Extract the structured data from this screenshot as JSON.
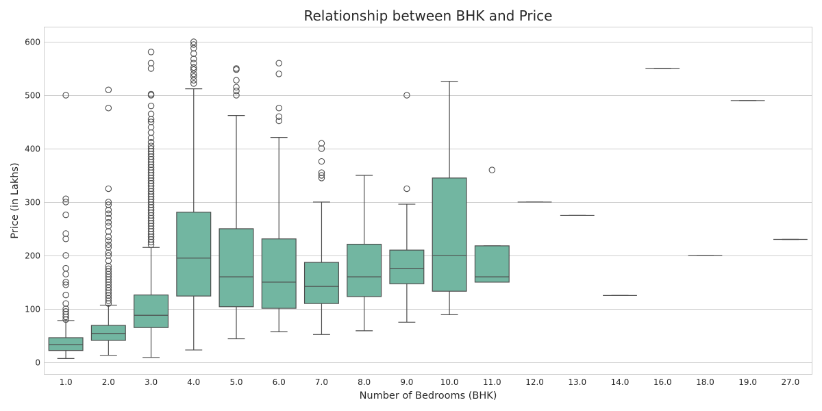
{
  "chart_data": {
    "type": "box",
    "title": "Relationship between BHK and Price",
    "xlabel": "Number of Bedrooms (BHK)",
    "ylabel": "Price (in Lakhs)",
    "ylim": [
      -22,
      627
    ],
    "yticks": [
      0,
      100,
      200,
      300,
      400,
      500,
      600
    ],
    "grid": "horizontal",
    "colors": {
      "box": "#72b6a1",
      "line": "#4d4d4d",
      "grid": "#cccccc",
      "frame": "#cccccc"
    },
    "categories": [
      "1.0",
      "2.0",
      "3.0",
      "4.0",
      "5.0",
      "6.0",
      "7.0",
      "8.0",
      "9.0",
      "10.0",
      "11.0",
      "12.0",
      "13.0",
      "14.0",
      "16.0",
      "18.0",
      "19.0",
      "27.0"
    ],
    "boxes": [
      {
        "category": "1.0",
        "whislo": 7,
        "q1": 22,
        "med": 33,
        "q3": 46,
        "whishi": 78,
        "fliers": [
          500,
          306,
          300,
          276,
          241,
          231,
          200,
          176,
          165,
          150,
          145,
          126,
          110,
          100,
          95,
          90,
          85,
          80
        ]
      },
      {
        "category": "2.0",
        "whislo": 13,
        "q1": 41,
        "med": 54,
        "q3": 69,
        "whishi": 107,
        "fliers": [
          510,
          476,
          325,
          300,
          295,
          285,
          278,
          270,
          262,
          255,
          245,
          235,
          228,
          220,
          215,
          205,
          200,
          190,
          180,
          175,
          170,
          165,
          160,
          155,
          150,
          145,
          140,
          135,
          130,
          125,
          120,
          115,
          110
        ]
      },
      {
        "category": "3.0",
        "whislo": 9,
        "q1": 65,
        "med": 88,
        "q3": 126,
        "whishi": 215,
        "fliers": [
          581,
          560,
          550,
          502,
          500,
          480,
          465,
          455,
          450,
          440,
          430,
          420,
          412,
          405,
          400,
          395,
          390,
          385,
          380,
          375,
          370,
          365,
          360,
          355,
          350,
          345,
          340,
          335,
          330,
          325,
          320,
          315,
          310,
          305,
          300,
          295,
          290,
          285,
          280,
          275,
          270,
          265,
          260,
          255,
          250,
          245,
          240,
          235,
          230,
          225,
          220
        ]
      },
      {
        "category": "4.0",
        "whislo": 23,
        "q1": 124,
        "med": 195,
        "q3": 281,
        "whishi": 512,
        "fliers": [
          600,
          595,
          588,
          578,
          568,
          560,
          552,
          548,
          540,
          535,
          528,
          522
        ]
      },
      {
        "category": "5.0",
        "whislo": 44,
        "q1": 104,
        "med": 160,
        "q3": 250,
        "whishi": 462,
        "fliers": [
          550,
          548,
          528,
          515,
          508,
          500
        ]
      },
      {
        "category": "6.0",
        "whislo": 57,
        "q1": 101,
        "med": 150,
        "q3": 231,
        "whishi": 421,
        "fliers": [
          560,
          540,
          476,
          460,
          452
        ]
      },
      {
        "category": "7.0",
        "whislo": 52,
        "q1": 110,
        "med": 142,
        "q3": 187,
        "whishi": 300,
        "fliers": [
          410,
          400,
          376,
          355,
          350,
          345
        ]
      },
      {
        "category": "8.0",
        "whislo": 59,
        "q1": 123,
        "med": 160,
        "q3": 221,
        "whishi": 350,
        "fliers": []
      },
      {
        "category": "9.0",
        "whislo": 75,
        "q1": 147,
        "med": 176,
        "q3": 210,
        "whishi": 296,
        "fliers": [
          500,
          325
        ]
      },
      {
        "category": "10.0",
        "whislo": 89,
        "q1": 133,
        "med": 200,
        "q3": 345,
        "whishi": 526,
        "fliers": []
      },
      {
        "category": "11.0",
        "whislo": 150,
        "q1": 150,
        "med": 160,
        "q3": 218,
        "whishi": 218,
        "fliers": [
          360
        ]
      },
      {
        "category": "12.0",
        "whislo": 300,
        "q1": 300,
        "med": 300,
        "q3": 300,
        "whishi": 300,
        "fliers": []
      },
      {
        "category": "13.0",
        "whislo": 275,
        "q1": 275,
        "med": 275,
        "q3": 275,
        "whishi": 275,
        "fliers": []
      },
      {
        "category": "14.0",
        "whislo": 125,
        "q1": 125,
        "med": 125,
        "q3": 125,
        "whishi": 125,
        "fliers": []
      },
      {
        "category": "16.0",
        "whislo": 550,
        "q1": 550,
        "med": 550,
        "q3": 550,
        "whishi": 550,
        "fliers": []
      },
      {
        "category": "18.0",
        "whislo": 200,
        "q1": 200,
        "med": 200,
        "q3": 200,
        "whishi": 200,
        "fliers": []
      },
      {
        "category": "19.0",
        "whislo": 490,
        "q1": 490,
        "med": 490,
        "q3": 490,
        "whishi": 490,
        "fliers": []
      },
      {
        "category": "27.0",
        "whislo": 230,
        "q1": 230,
        "med": 230,
        "q3": 230,
        "whishi": 230,
        "fliers": []
      }
    ]
  }
}
